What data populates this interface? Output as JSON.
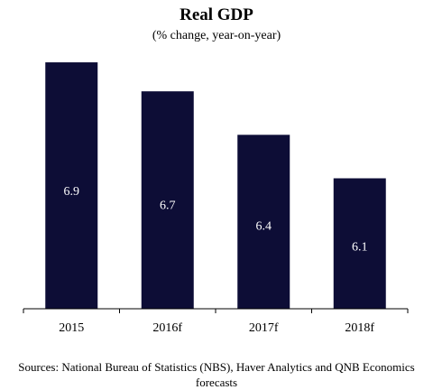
{
  "chart_data": {
    "type": "bar",
    "title": "Real GDP",
    "subtitle": "(% change, year-on-year)",
    "categories": [
      "2015",
      "2016f",
      "2017f",
      "2018f"
    ],
    "values": [
      6.9,
      6.7,
      6.4,
      6.1
    ],
    "data_labels": [
      "6.9",
      "6.7",
      "6.4",
      "6.1"
    ],
    "ylim": [
      5.2,
      7.0
    ],
    "grid": false,
    "legend": "none",
    "colors": {
      "bar": "#0d0d36",
      "data_label": "#ffffff",
      "axis": "#000000"
    }
  },
  "source": "Sources: National Bureau of Statistics (NBS), Haver Analytics and QNB Economics forecasts"
}
